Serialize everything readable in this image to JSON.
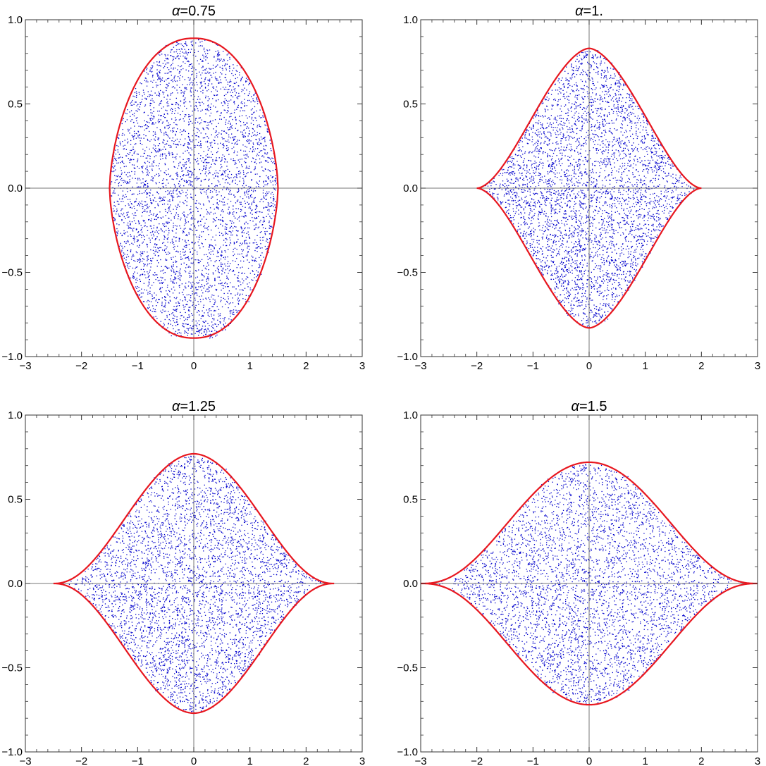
{
  "chart_data": [
    {
      "type": "scatter",
      "title_symbol": "α",
      "title_value": "=0.75",
      "xlim": [
        -3,
        3
      ],
      "ylim": [
        -1.0,
        1.0
      ],
      "x_ticks": [
        "−3",
        "−2",
        "−1",
        "0",
        "1",
        "2",
        "3"
      ],
      "y_ticks": [
        "1.0",
        "0.5",
        "0.0",
        "−0.5",
        "−1.0"
      ],
      "alpha": 0.75,
      "boundary_x_extent": 1.5,
      "boundary_y_max": 0.89,
      "series": [
        {
          "kind": "points",
          "color": "#0000cc"
        },
        {
          "kind": "boundary-curve",
          "color": "#e8171f"
        }
      ],
      "grid": false
    },
    {
      "type": "scatter",
      "title_symbol": "α",
      "title_value": "=1.",
      "xlim": [
        -3,
        3
      ],
      "ylim": [
        -1.0,
        1.0
      ],
      "x_ticks": [
        "−3",
        "−2",
        "−1",
        "0",
        "1",
        "2",
        "3"
      ],
      "y_ticks": [
        "1.0",
        "0.5",
        "0.0",
        "−0.5",
        "−1.0"
      ],
      "alpha": 1.0,
      "boundary_x_extent": 2.0,
      "boundary_y_max": 0.83,
      "series": [
        {
          "kind": "points",
          "color": "#0000cc"
        },
        {
          "kind": "boundary-curve",
          "color": "#e8171f"
        }
      ],
      "grid": false
    },
    {
      "type": "scatter",
      "title_symbol": "α",
      "title_value": "=1.25",
      "xlim": [
        -3,
        3
      ],
      "ylim": [
        -1.0,
        1.0
      ],
      "x_ticks": [
        "−3",
        "−2",
        "−1",
        "0",
        "1",
        "2",
        "3"
      ],
      "y_ticks": [
        "1.0",
        "0.5",
        "0.0",
        "−0.5",
        "−1.0"
      ],
      "alpha": 1.25,
      "boundary_x_extent": 2.5,
      "boundary_y_max": 0.77,
      "series": [
        {
          "kind": "points",
          "color": "#0000cc"
        },
        {
          "kind": "boundary-curve",
          "color": "#e8171f"
        }
      ],
      "grid": false
    },
    {
      "type": "scatter",
      "title_symbol": "α",
      "title_value": "=1.5",
      "xlim": [
        -3,
        3
      ],
      "ylim": [
        -1.0,
        1.0
      ],
      "x_ticks": [
        "−3",
        "−2",
        "−1",
        "0",
        "1",
        "2",
        "3"
      ],
      "y_ticks": [
        "1.0",
        "0.5",
        "0.0",
        "−0.5",
        "−1.0"
      ],
      "alpha": 1.5,
      "boundary_x_extent": 3.0,
      "boundary_y_max": 0.72,
      "series": [
        {
          "kind": "points",
          "color": "#0000cc"
        },
        {
          "kind": "boundary-curve",
          "color": "#e8171f"
        }
      ],
      "grid": false
    }
  ]
}
